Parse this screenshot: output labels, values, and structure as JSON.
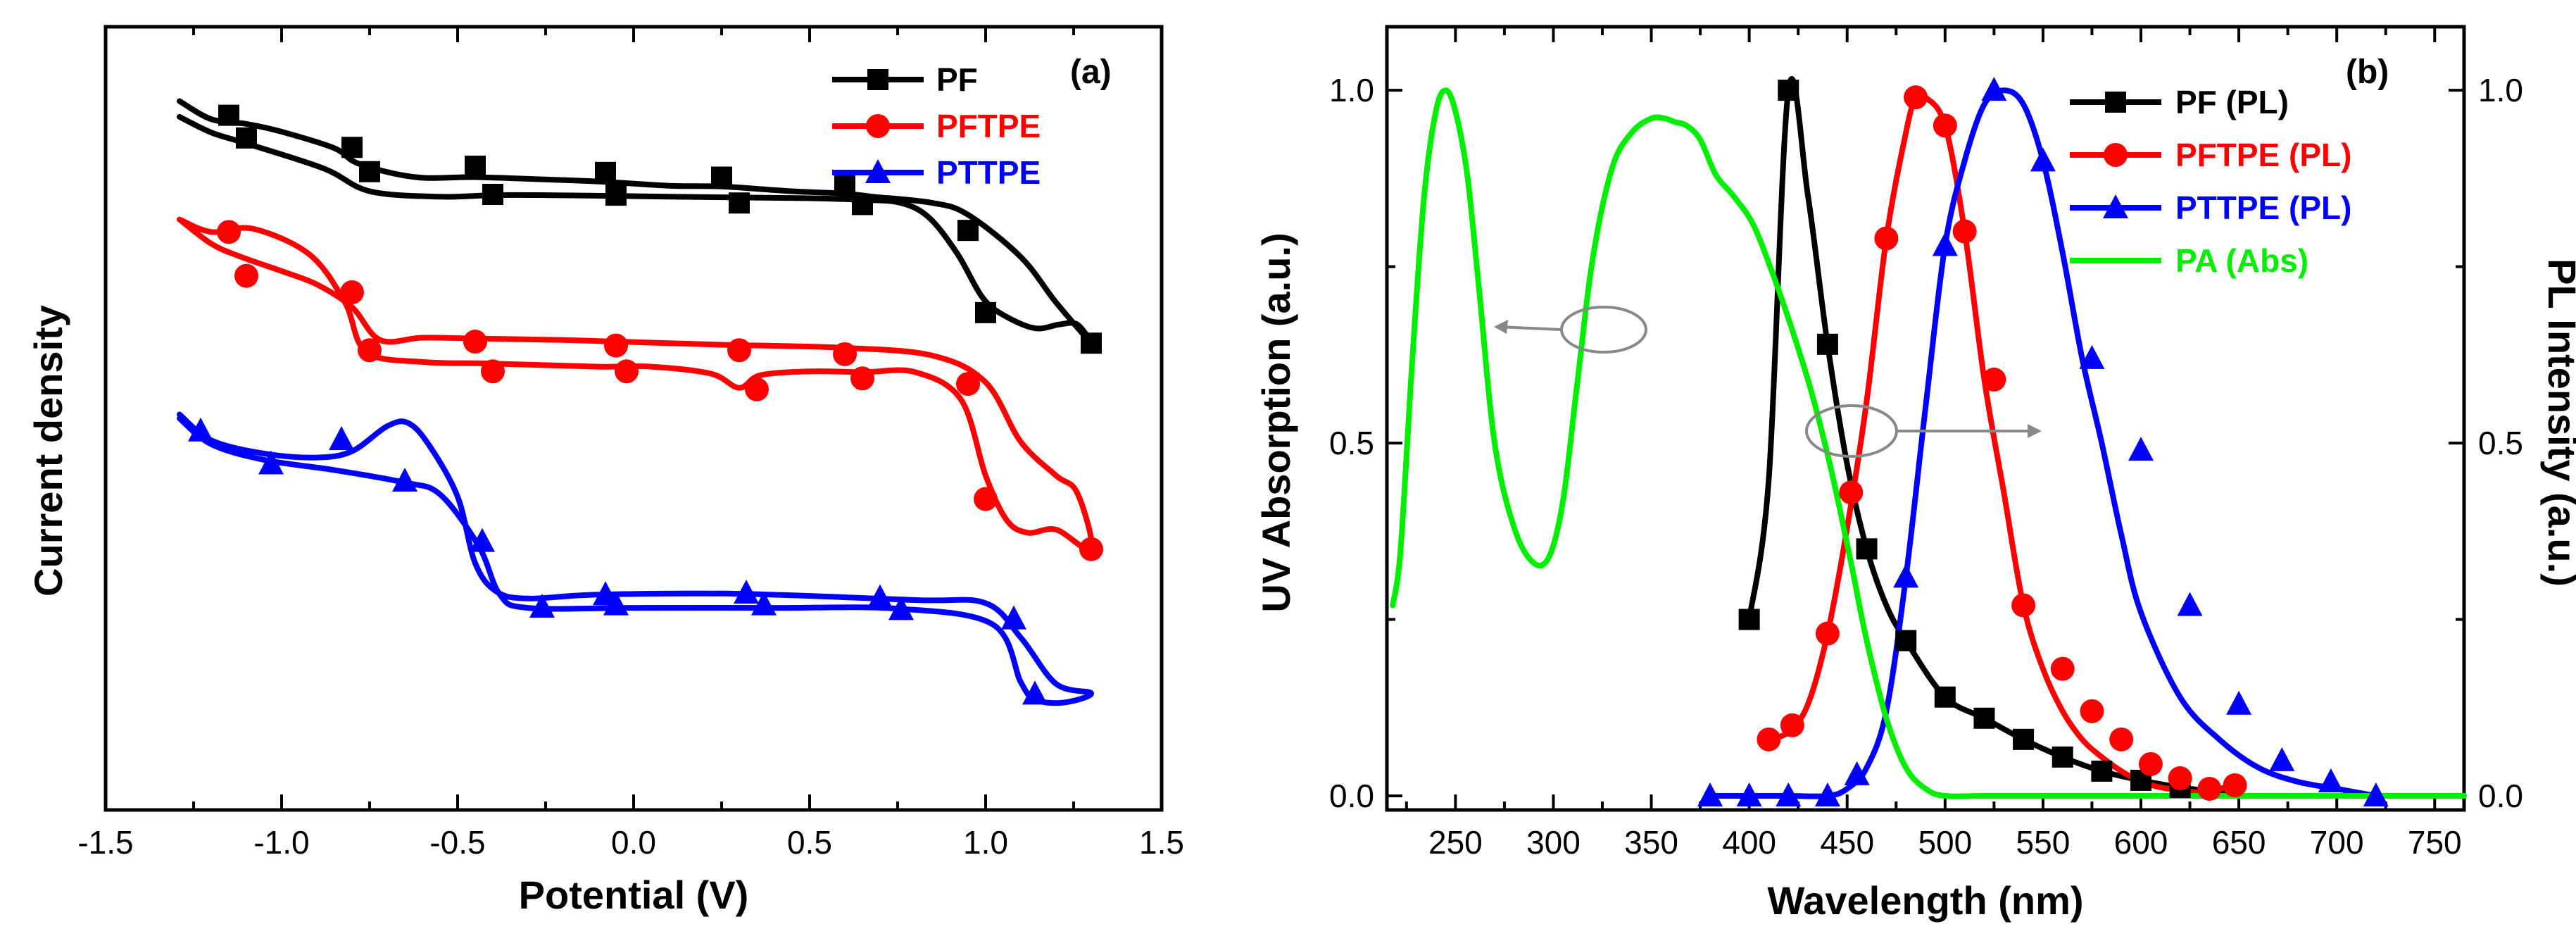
{
  "colors": {
    "PF": "#000000",
    "PFTPE": "#ff0000",
    "PTTPE": "#0000ff",
    "PA": "#00ee00",
    "annotation": "#888888"
  },
  "chart_data": [
    {
      "type": "line",
      "panel_label": "(a)",
      "title": "",
      "xlabel": "Potential (V)",
      "ylabel": "Current density",
      "xlim": [
        -1.5,
        1.5
      ],
      "ylim": [
        0,
        1
      ],
      "x_ticks": [
        -1.5,
        -1.0,
        -0.5,
        0.0,
        0.5,
        1.0,
        1.5
      ],
      "x_tick_labels": [
        "-1.5",
        "-1.0",
        "-0.5",
        "0.0",
        "0.5",
        "1.0",
        "1.5"
      ],
      "y_ticks_shown": false,
      "legend": "top-right",
      "series": [
        {
          "name": "PF",
          "marker": "square",
          "color": "#000000",
          "x": [
            -1.29,
            -1.2,
            -1.1,
            -1.0,
            -0.85,
            -0.78,
            -0.62,
            -0.45,
            -0.25,
            -0.08,
            0.1,
            0.25,
            0.45,
            0.6,
            0.68,
            0.85,
            0.95,
            1.1,
            1.2,
            1.3,
            1.26,
            1.21,
            1.14,
            1.05,
            0.99,
            0.92,
            0.84,
            0.76,
            0.65,
            0.5,
            0.3,
            0.1,
            -0.05,
            -0.25,
            -0.4,
            -0.55,
            -0.75,
            -0.88,
            -1.1,
            -1.2,
            -1.29
          ],
          "y": [
            0.905,
            0.882,
            0.876,
            0.866,
            0.845,
            0.825,
            0.808,
            0.808,
            0.805,
            0.802,
            0.797,
            0.796,
            0.79,
            0.787,
            0.783,
            0.775,
            0.76,
            0.706,
            0.648,
            0.596,
            0.62,
            0.62,
            0.615,
            0.632,
            0.655,
            0.71,
            0.756,
            0.775,
            0.779,
            0.781,
            0.782,
            0.783,
            0.784,
            0.785,
            0.785,
            0.783,
            0.79,
            0.819,
            0.851,
            0.865,
            0.885
          ],
          "markers_x": [
            -1.15,
            -1.1,
            -0.8,
            -0.75,
            -0.45,
            -0.4,
            -0.08,
            -0.05,
            0.25,
            0.3,
            0.6,
            0.65,
            0.95,
            1.0,
            1.3
          ],
          "markers_y": [
            0.887,
            0.858,
            0.846,
            0.815,
            0.822,
            0.786,
            0.814,
            0.785,
            0.808,
            0.775,
            0.798,
            0.773,
            0.74,
            0.635,
            0.596
          ]
        },
        {
          "name": "PFTPE",
          "marker": "circle",
          "color": "#ff0000",
          "x": [
            -1.29,
            -1.2,
            -1.12,
            -1.0,
            -0.9,
            -0.8,
            -0.72,
            -0.6,
            -0.45,
            -0.2,
            -0.05,
            0.1,
            0.25,
            0.6,
            0.85,
            1.0,
            1.1,
            1.2,
            1.26,
            1.3,
            1.2,
            1.12,
            1.06,
            1.0,
            0.93,
            0.8,
            0.65,
            0.5,
            0.36,
            0.3,
            0.22,
            0.05,
            -0.1,
            -0.4,
            -0.6,
            -0.76,
            -0.82,
            -0.92,
            -1.08,
            -1.2,
            -1.29
          ],
          "y": [
            0.754,
            0.723,
            0.707,
            0.688,
            0.671,
            0.642,
            0.6,
            0.603,
            0.602,
            0.6,
            0.598,
            0.596,
            0.594,
            0.59,
            0.58,
            0.546,
            0.47,
            0.427,
            0.405,
            0.333,
            0.358,
            0.354,
            0.37,
            0.427,
            0.524,
            0.559,
            0.559,
            0.56,
            0.555,
            0.539,
            0.557,
            0.566,
            0.566,
            0.57,
            0.572,
            0.585,
            0.648,
            0.709,
            0.742,
            0.738,
            0.754
          ],
          "markers_x": [
            -1.15,
            -1.1,
            -0.8,
            -0.75,
            -0.45,
            -0.4,
            -0.05,
            -0.02,
            0.3,
            0.35,
            0.6,
            0.65,
            0.95,
            1.0,
            1.3
          ],
          "markers_y": [
            0.738,
            0.682,
            0.661,
            0.587,
            0.598,
            0.56,
            0.593,
            0.56,
            0.587,
            0.537,
            0.582,
            0.551,
            0.544,
            0.397,
            0.333
          ]
        },
        {
          "name": "PTTPE",
          "marker": "triangle",
          "color": "#0000ff",
          "x": [
            -1.29,
            -1.2,
            -1.05,
            -0.9,
            -0.8,
            -0.7,
            -0.64,
            -0.58,
            -0.5,
            -0.45,
            -0.39,
            -0.3,
            -0.1,
            0.3,
            0.8,
            1.0,
            1.1,
            1.2,
            1.3,
            1.22,
            1.14,
            1.1,
            1.02,
            0.75,
            0.4,
            0.0,
            -0.3,
            -0.38,
            -0.44,
            -0.55,
            -0.65,
            -0.85,
            -1.05,
            -1.2,
            -1.29
          ],
          "y": [
            0.505,
            0.472,
            0.455,
            0.45,
            0.458,
            0.49,
            0.494,
            0.465,
            0.4,
            0.315,
            0.279,
            0.27,
            0.275,
            0.276,
            0.268,
            0.264,
            0.22,
            0.161,
            0.149,
            0.137,
            0.141,
            0.163,
            0.237,
            0.257,
            0.258,
            0.258,
            0.258,
            0.275,
            0.337,
            0.403,
            0.418,
            0.434,
            0.447,
            0.467,
            0.5
          ],
          "markers_x": [
            -1.23,
            -1.03,
            -0.83,
            -0.65,
            -0.43,
            -0.26,
            -0.08,
            -0.05,
            0.32,
            0.37,
            0.7,
            0.76,
            1.08,
            1.14
          ],
          "markers_y": [
            0.484,
            0.442,
            0.473,
            0.42,
            0.343,
            0.259,
            0.275,
            0.262,
            0.277,
            0.262,
            0.271,
            0.256,
            0.244,
            0.148
          ]
        }
      ]
    },
    {
      "type": "line",
      "panel_label": "(b)",
      "title": "",
      "xlabel": "Wavelength (nm)",
      "ylabel": "UV Absorption (a.u.)",
      "ylabel_right": "PL Intensity (a.u.)",
      "xlim": [
        215,
        765
      ],
      "ylim": [
        -0.02,
        1.09
      ],
      "x_ticks": [
        250,
        300,
        350,
        400,
        450,
        500,
        550,
        600,
        650,
        700,
        750
      ],
      "x_tick_labels": [
        "250",
        "300",
        "350",
        "400",
        "450",
        "500",
        "550",
        "600",
        "650",
        "700",
        "750"
      ],
      "y_ticks": [
        0.0,
        0.5,
        1.0
      ],
      "y_tick_labels": [
        "0.0",
        "0.5",
        "1.0"
      ],
      "y_right_ticks": [
        0.0,
        0.5,
        1.0
      ],
      "y_right_tick_labels": [
        "0.0",
        "0.5",
        "1.0"
      ],
      "legend": "top-right",
      "series": [
        {
          "name": "PF (PL)",
          "marker": "square",
          "color": "#000000",
          "x": [
            400,
            410,
            420,
            430,
            440,
            450,
            460,
            470,
            480,
            500,
            520,
            540,
            560,
            580,
            600,
            620,
            640,
            650
          ],
          "y": [
            0.25,
            0.45,
            1.0,
            0.85,
            0.64,
            0.47,
            0.35,
            0.27,
            0.22,
            0.14,
            0.11,
            0.08,
            0.055,
            0.035,
            0.022,
            0.012,
            0.005,
            0.0
          ],
          "markers_x": [
            400,
            420,
            440,
            460,
            480,
            500,
            520,
            540,
            560,
            580,
            600,
            620
          ],
          "markers_y": [
            0.25,
            1.0,
            0.64,
            0.35,
            0.22,
            0.14,
            0.11,
            0.08,
            0.055,
            0.035,
            0.022,
            0.012
          ]
        },
        {
          "name": "PFTPE (PL)",
          "marker": "circle",
          "color": "#ff0000",
          "x": [
            408,
            420,
            430,
            440,
            450,
            460,
            470,
            480,
            485,
            490,
            500,
            510,
            520,
            530,
            540,
            550,
            560,
            570,
            580,
            590,
            600,
            610,
            620,
            630,
            640,
            648
          ],
          "y": [
            0.08,
            0.09,
            0.13,
            0.23,
            0.38,
            0.56,
            0.79,
            0.94,
            0.99,
            0.99,
            0.95,
            0.8,
            0.59,
            0.43,
            0.27,
            0.18,
            0.12,
            0.08,
            0.055,
            0.035,
            0.02,
            0.012,
            0.008,
            0.005,
            0.01,
            0.015
          ],
          "markers_x": [
            410,
            422,
            440,
            452,
            470,
            485,
            500,
            510,
            525,
            540,
            560,
            575,
            590,
            605,
            620,
            635,
            648
          ],
          "markers_y": [
            0.08,
            0.1,
            0.23,
            0.43,
            0.79,
            0.99,
            0.95,
            0.8,
            0.59,
            0.27,
            0.18,
            0.12,
            0.08,
            0.045,
            0.025,
            0.01,
            0.015
          ],
          "markers_note": ""
        },
        {
          "name": "PTTPE (PL)",
          "marker": "triangle",
          "color": "#0000ff",
          "x": [
            380,
            400,
            420,
            440,
            450,
            460,
            470,
            480,
            490,
            500,
            510,
            520,
            530,
            540,
            550,
            560,
            570,
            580,
            590,
            600,
            620,
            640,
            660,
            680,
            700,
            720
          ],
          "y": [
            0.0,
            0.0,
            0.0,
            0.0,
            0.01,
            0.04,
            0.12,
            0.31,
            0.55,
            0.78,
            0.9,
            0.98,
            1.0,
            0.98,
            0.9,
            0.77,
            0.62,
            0.5,
            0.37,
            0.26,
            0.14,
            0.08,
            0.04,
            0.02,
            0.01,
            0.0
          ],
          "markers_x": [
            380,
            400,
            420,
            440,
            455,
            480,
            500,
            525,
            550,
            575,
            600,
            625,
            650,
            672,
            697,
            720
          ],
          "markers_y": [
            0.0,
            0.0,
            0.0,
            0.0,
            0.03,
            0.31,
            0.78,
            1.0,
            0.9,
            0.62,
            0.49,
            0.27,
            0.13,
            0.05,
            0.02,
            0.0
          ],
          "markers_note": ""
        },
        {
          "name": "PA (Abs)",
          "marker": "none",
          "color": "#00ee00",
          "x": [
            218,
            222,
            228,
            234,
            240,
            245,
            250,
            256,
            262,
            270,
            280,
            290,
            298,
            305,
            312,
            320,
            330,
            340,
            350,
            357,
            362,
            368,
            375,
            383,
            392,
            402,
            412,
            422,
            432,
            442,
            452,
            460,
            470,
            480,
            490,
            500,
            520,
            560,
            600,
            650,
            700,
            765
          ],
          "y": [
            0.27,
            0.35,
            0.62,
            0.85,
            0.97,
            1.0,
            0.97,
            0.88,
            0.72,
            0.5,
            0.38,
            0.33,
            0.34,
            0.42,
            0.58,
            0.76,
            0.89,
            0.94,
            0.96,
            0.96,
            0.955,
            0.95,
            0.93,
            0.88,
            0.85,
            0.81,
            0.74,
            0.66,
            0.57,
            0.46,
            0.33,
            0.22,
            0.11,
            0.04,
            0.01,
            0.0,
            0.0,
            0.0,
            0.0,
            0.0,
            0.0,
            0.0
          ]
        }
      ]
    }
  ]
}
